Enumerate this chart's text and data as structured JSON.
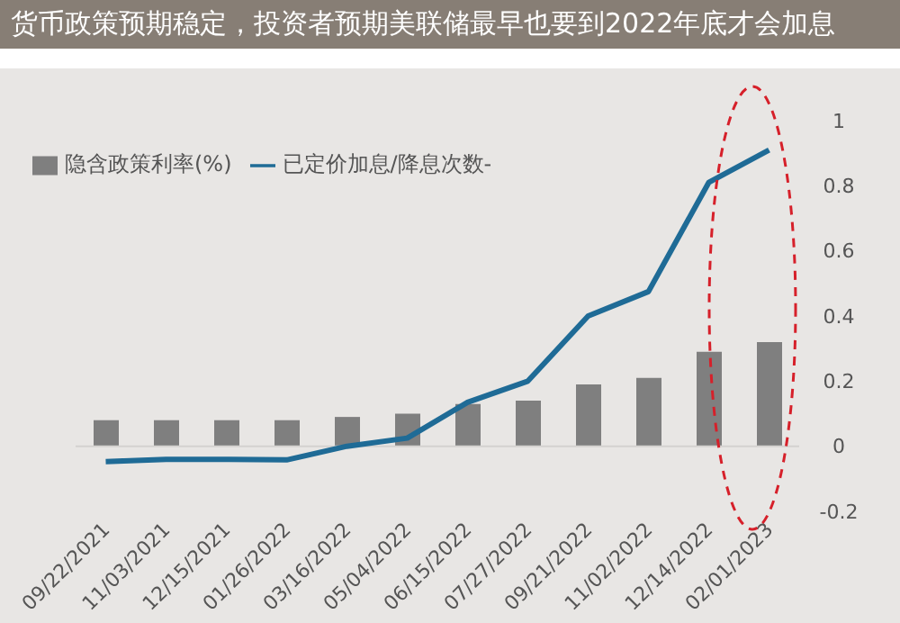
{
  "chart_data": {
    "type": "bar",
    "title": "货币政策预期稳定，投资者预期美联储最早也要到2022年底才会加息",
    "categories": [
      "09/22/2021",
      "11/03/2021",
      "12/15/2021",
      "01/26/2022",
      "03/16/2022",
      "05/04/2022",
      "06/15/2022",
      "07/27/2022",
      "09/21/2022",
      "11/02/2022",
      "12/14/2022",
      "02/01/2023"
    ],
    "series": [
      {
        "name": "隐含政策利率(%)",
        "color": "#7f7f7f",
        "values": [
          0.08,
          0.08,
          0.08,
          0.08,
          0.09,
          0.1,
          0.13,
          0.14,
          0.19,
          0.21,
          0.29,
          0.32
        ]
      },
      {
        "name": "已定价加息/降息次数-",
        "type": "line",
        "color": "#1f6b96",
        "values": [
          -0.047,
          -0.04,
          -0.04,
          -0.042,
          0,
          0.025,
          0.135,
          0.2,
          0.4,
          0.475,
          0.81,
          0.91
        ]
      }
    ],
    "ylim": [
      -0.2,
      1
    ],
    "yticks": [
      -0.2,
      0,
      0.2,
      0.4,
      0.6,
      0.8,
      1
    ],
    "ref_lines": [
      {
        "axis": "y",
        "value": 0,
        "color": "#d4d2d0"
      }
    ],
    "legend": "top left",
    "grid": false,
    "marker": "none",
    "line_style": "solid"
  }
}
